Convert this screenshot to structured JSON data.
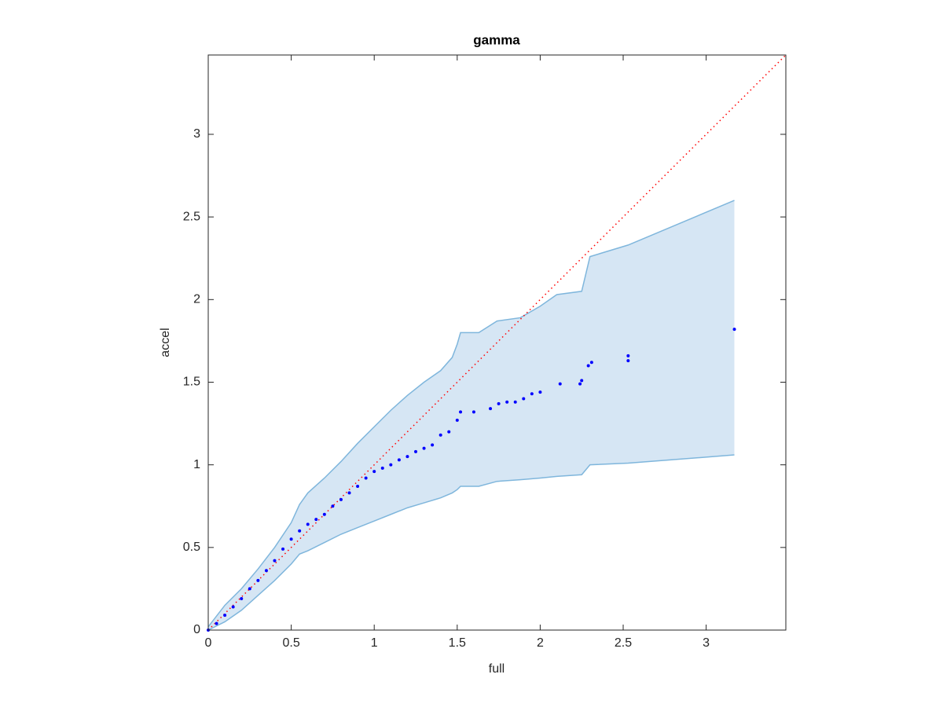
{
  "chart_data": {
    "type": "qqband",
    "title": "gamma",
    "x_label": "full",
    "y_label": "accel",
    "xlim": [
      0,
      3.48
    ],
    "ylim": [
      0,
      3.48
    ],
    "xticks": [
      0,
      0.5,
      1,
      1.5,
      2,
      2.5,
      3
    ],
    "yticks": [
      0,
      0.5,
      1,
      1.5,
      2,
      2.5,
      3
    ],
    "band": {
      "color": "#d6e6f4",
      "edge_color": "#7fb6dc",
      "x": [
        0,
        0.1,
        0.2,
        0.3,
        0.4,
        0.5,
        0.55,
        0.6,
        0.7,
        0.8,
        0.9,
        1.0,
        1.1,
        1.2,
        1.3,
        1.4,
        1.47,
        1.5,
        1.52,
        1.63,
        1.74,
        1.88,
        2.0,
        2.1,
        2.25,
        2.3,
        2.53,
        3.17
      ],
      "upper": [
        0.02,
        0.15,
        0.25,
        0.37,
        0.5,
        0.65,
        0.76,
        0.83,
        0.92,
        1.02,
        1.13,
        1.23,
        1.33,
        1.42,
        1.5,
        1.57,
        1.65,
        1.73,
        1.8,
        1.8,
        1.87,
        1.89,
        1.96,
        2.03,
        2.05,
        2.26,
        2.33,
        2.6
      ],
      "lower": [
        0,
        0.05,
        0.12,
        0.21,
        0.3,
        0.4,
        0.46,
        0.48,
        0.53,
        0.58,
        0.62,
        0.66,
        0.7,
        0.74,
        0.77,
        0.8,
        0.83,
        0.85,
        0.87,
        0.87,
        0.9,
        0.91,
        0.92,
        0.93,
        0.94,
        1.0,
        1.01,
        1.06
      ]
    },
    "reference": {
      "color": "#ff0000",
      "x": [
        0,
        3.48
      ],
      "values": [
        0,
        3.48
      ]
    },
    "points": {
      "color": "#0000ff",
      "x": [
        0,
        0.05,
        0.1,
        0.15,
        0.2,
        0.25,
        0.3,
        0.35,
        0.4,
        0.45,
        0.5,
        0.55,
        0.6,
        0.65,
        0.7,
        0.75,
        0.8,
        0.85,
        0.9,
        0.95,
        1.0,
        1.05,
        1.1,
        1.15,
        1.2,
        1.25,
        1.3,
        1.35,
        1.4,
        1.45,
        1.5,
        1.52,
        1.6,
        1.7,
        1.75,
        1.8,
        1.85,
        1.9,
        1.95,
        2.0,
        2.12,
        2.24,
        2.25,
        2.29,
        2.31,
        2.53,
        2.53,
        3.17
      ],
      "values": [
        0,
        0.04,
        0.09,
        0.14,
        0.19,
        0.25,
        0.3,
        0.36,
        0.42,
        0.49,
        0.55,
        0.6,
        0.64,
        0.67,
        0.7,
        0.75,
        0.79,
        0.83,
        0.87,
        0.92,
        0.96,
        0.98,
        1.0,
        1.03,
        1.05,
        1.08,
        1.1,
        1.12,
        1.18,
        1.2,
        1.27,
        1.32,
        1.32,
        1.34,
        1.37,
        1.38,
        1.38,
        1.4,
        1.43,
        1.44,
        1.49,
        1.49,
        1.51,
        1.6,
        1.62,
        1.63,
        1.66,
        1.82
      ]
    }
  }
}
